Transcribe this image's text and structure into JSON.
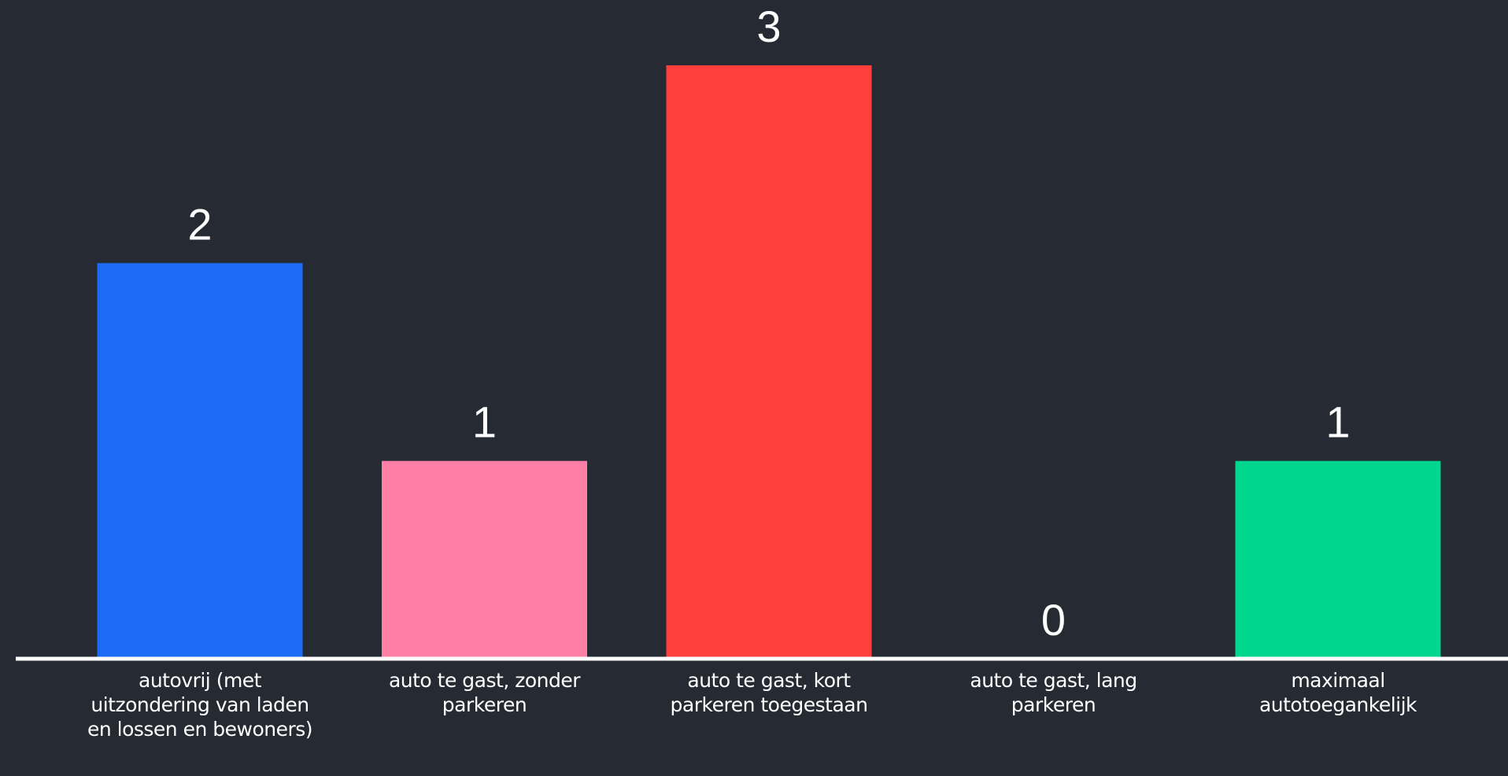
{
  "chart_data": {
    "type": "bar",
    "categories": [
      "autovrij (met uitzondering van laden en lossen en bewoners)",
      "auto te gast, zonder parkeren",
      "auto te gast, kort parkeren toegestaan",
      "auto te gast, lang parkeren",
      "maximaal autotoegankelijk"
    ],
    "values": [
      2,
      1,
      3,
      0,
      1
    ],
    "colors": [
      "#1c6cf7",
      "#ff7fa6",
      "#ff3f3c",
      "#00d68e",
      "#00d68e"
    ],
    "ylim": [
      0,
      3
    ],
    "grid": false,
    "legend": "none"
  },
  "colors": {
    "background": "#252a33",
    "baseline": "#ffffff",
    "text": "#ffffff"
  }
}
